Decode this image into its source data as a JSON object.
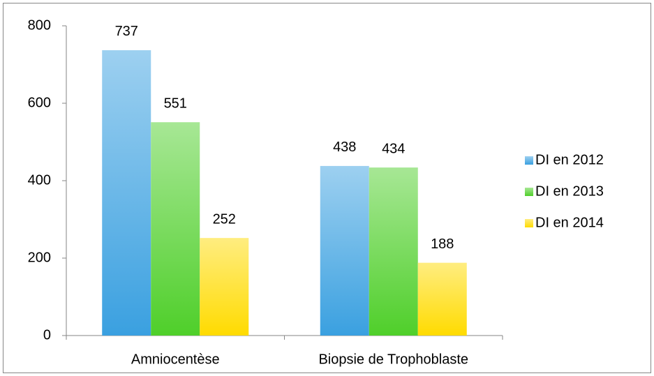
{
  "chart_data": {
    "type": "bar",
    "categories": [
      "Amniocentèse",
      "Biopsie de Trophoblaste"
    ],
    "series": [
      {
        "name": "DI en 2012",
        "color": "#3aa0e0",
        "values": [
          737,
          438
        ]
      },
      {
        "name": "DI en 2013",
        "color": "#4fcf2a",
        "values": [
          551,
          434
        ]
      },
      {
        "name": "DI en 2014",
        "color": "#ffdb00",
        "values": [
          252,
          188
        ]
      }
    ],
    "ylim": [
      0,
      800
    ],
    "yticks": [
      0,
      200,
      400,
      600,
      800
    ],
    "grid": false,
    "legend": "right"
  }
}
